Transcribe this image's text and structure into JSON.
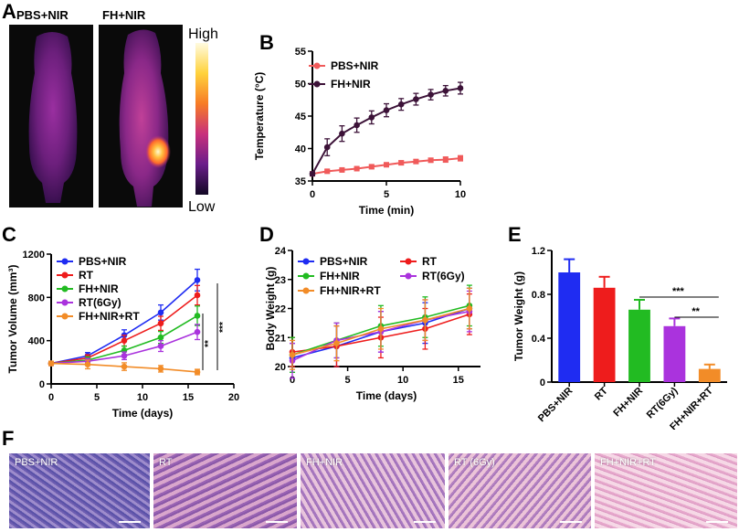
{
  "panels": {
    "A": {
      "letter": "A",
      "image_labels": [
        "PBS+NIR",
        "FH+NIR"
      ],
      "colorbar": {
        "high": "High",
        "low": "Low"
      }
    },
    "B": {
      "letter": "B"
    },
    "C": {
      "letter": "C"
    },
    "D": {
      "letter": "D"
    },
    "E": {
      "letter": "E"
    },
    "F": {
      "letter": "F",
      "labels": [
        "PBS+NIR",
        "RT",
        "FH+NIR",
        "RT (6Gy)",
        "FH+NIR+RT"
      ]
    }
  },
  "colors": {
    "blue": "#1f2cf2",
    "red": "#ee1c1c",
    "green": "#22bb22",
    "purple": "#aa33dd",
    "orange": "#f28c28",
    "pbs_b": "#f05a5a",
    "fh_b": "#3c1238"
  },
  "chart_data": [
    {
      "id": "B",
      "type": "line",
      "title": "",
      "xlabel": "Time (min)",
      "ylabel": "Temperature (°C)",
      "xlim": [
        0,
        10
      ],
      "ylim": [
        35,
        55
      ],
      "xticks": [
        0,
        5,
        10
      ],
      "yticks": [
        35,
        40,
        45,
        50,
        55
      ],
      "legend": "top-left",
      "series": [
        {
          "name": "PBS+NIR",
          "color": "#f05a5a",
          "marker": "square",
          "x": [
            0,
            1,
            2,
            3,
            4,
            5,
            6,
            7,
            8,
            9,
            10
          ],
          "y": [
            36.1,
            36.5,
            36.7,
            36.9,
            37.2,
            37.5,
            37.8,
            38.0,
            38.2,
            38.3,
            38.5
          ],
          "err": [
            0.2,
            0.2,
            0.2,
            0.2,
            0.3,
            0.3,
            0.3,
            0.3,
            0.3,
            0.4,
            0.4
          ]
        },
        {
          "name": "FH+NIR",
          "color": "#3c1238",
          "marker": "circle",
          "x": [
            0,
            1,
            2,
            3,
            4,
            5,
            6,
            7,
            8,
            9,
            10
          ],
          "y": [
            36.1,
            40.2,
            42.3,
            43.6,
            44.8,
            45.9,
            46.8,
            47.6,
            48.3,
            48.9,
            49.3
          ],
          "err": [
            0.3,
            1.3,
            1.2,
            1.1,
            1.0,
            1.0,
            0.9,
            0.9,
            0.8,
            0.8,
            0.9
          ]
        }
      ]
    },
    {
      "id": "C",
      "type": "line",
      "title": "",
      "xlabel": "Time (days)",
      "ylabel": "Tumor Volume (mm³)",
      "xlim": [
        0,
        20
      ],
      "ylim": [
        0,
        1200
      ],
      "xticks": [
        0,
        5,
        10,
        15,
        20
      ],
      "yticks": [
        0,
        400,
        800,
        1200
      ],
      "legend": "top-left",
      "series": [
        {
          "name": "PBS+NIR",
          "color": "#1f2cf2",
          "x": [
            0,
            4,
            8,
            12,
            16
          ],
          "y": [
            190,
            260,
            450,
            660,
            960
          ],
          "err": [
            20,
            30,
            50,
            70,
            100
          ]
        },
        {
          "name": "RT",
          "color": "#ee1c1c",
          "x": [
            0,
            4,
            8,
            12,
            16
          ],
          "y": [
            190,
            240,
            400,
            560,
            820
          ],
          "err": [
            20,
            30,
            50,
            65,
            90
          ]
        },
        {
          "name": "FH+NIR",
          "color": "#22bb22",
          "x": [
            0,
            4,
            8,
            12,
            16
          ],
          "y": [
            190,
            220,
            310,
            430,
            630
          ],
          "err": [
            20,
            30,
            40,
            55,
            90
          ]
        },
        {
          "name": "RT(6Gy)",
          "color": "#aa33dd",
          "x": [
            0,
            4,
            8,
            12,
            16
          ],
          "y": [
            190,
            210,
            260,
            350,
            480
          ],
          "err": [
            20,
            25,
            35,
            50,
            70
          ]
        },
        {
          "name": "FH+NIR+RT",
          "color": "#f28c28",
          "x": [
            0,
            4,
            8,
            12,
            16
          ],
          "y": [
            190,
            180,
            160,
            140,
            110
          ],
          "err": [
            20,
            40,
            35,
            30,
            25
          ]
        }
      ],
      "annotations": [
        "**",
        "***"
      ]
    },
    {
      "id": "D",
      "type": "line",
      "title": "",
      "xlabel": "Time (days)",
      "ylabel": "Body Weight (g)",
      "xlim": [
        0,
        17
      ],
      "ylim": [
        20,
        24
      ],
      "xticks": [
        0,
        5,
        10,
        15
      ],
      "yticks": [
        20,
        21,
        22,
        23,
        24
      ],
      "legend": "top",
      "series": [
        {
          "name": "PBS+NIR",
          "color": "#1f2cf2",
          "x": [
            0,
            4,
            8,
            12,
            16
          ],
          "y": [
            20.3,
            20.7,
            21.2,
            21.5,
            22.0
          ],
          "err": [
            0.5,
            0.7,
            0.7,
            0.7,
            0.7
          ]
        },
        {
          "name": "RT",
          "color": "#ee1c1c",
          "x": [
            0,
            4,
            8,
            12,
            16
          ],
          "y": [
            20.5,
            20.7,
            21.0,
            21.3,
            21.8
          ],
          "err": [
            0.5,
            0.7,
            0.7,
            0.7,
            0.7
          ]
        },
        {
          "name": "FH+NIR",
          "color": "#22bb22",
          "x": [
            0,
            4,
            8,
            12,
            16
          ],
          "y": [
            20.4,
            20.9,
            21.4,
            21.7,
            22.1
          ],
          "err": [
            0.6,
            0.6,
            0.7,
            0.7,
            0.7
          ]
        },
        {
          "name": "RT(6Gy)",
          "color": "#aa33dd",
          "x": [
            0,
            4,
            8,
            12,
            16
          ],
          "y": [
            20.2,
            20.9,
            21.2,
            21.6,
            21.9
          ],
          "err": [
            0.6,
            0.6,
            0.7,
            0.7,
            0.7
          ]
        },
        {
          "name": "FH+NIR+RT",
          "color": "#f28c28",
          "x": [
            0,
            4,
            8,
            12,
            16
          ],
          "y": [
            20.4,
            20.8,
            21.3,
            21.6,
            22.0
          ],
          "err": [
            0.5,
            0.6,
            0.7,
            0.7,
            0.7
          ]
        }
      ]
    },
    {
      "id": "E",
      "type": "bar",
      "title": "",
      "xlabel": "",
      "ylabel": "Tumor Weight (g)",
      "ylim": [
        0,
        1.2
      ],
      "yticks": [
        0.0,
        0.4,
        0.8,
        1.2
      ],
      "categories": [
        "PBS+NIR",
        "RT",
        "FH+NIR",
        "RT(6Gy)",
        "FH+NIR+RT"
      ],
      "values": [
        1.0,
        0.86,
        0.66,
        0.51,
        0.12
      ],
      "err": [
        0.12,
        0.1,
        0.09,
        0.07,
        0.04
      ],
      "colors": [
        "#1f2cf2",
        "#ee1c1c",
        "#22bb22",
        "#aa33dd",
        "#f28c28"
      ],
      "annotations": [
        "***",
        "**"
      ]
    }
  ]
}
